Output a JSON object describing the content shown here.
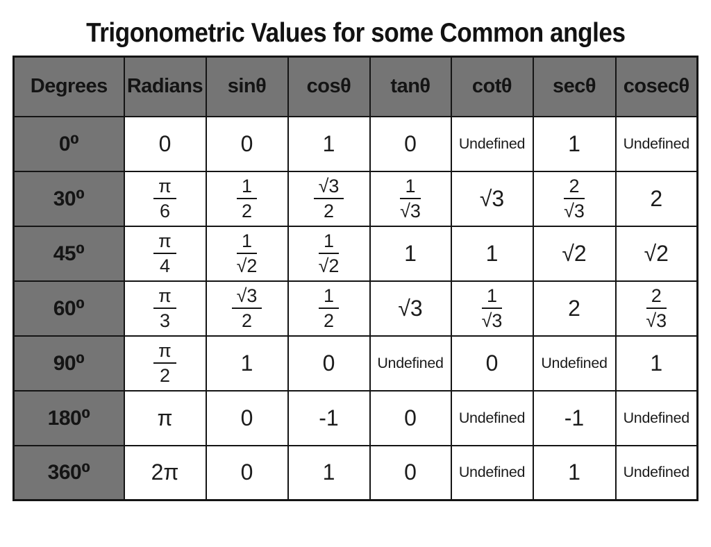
{
  "page": {
    "title": "Trigonometric Values for some Common angles"
  },
  "colors": {
    "header_bg": "#757575",
    "cell_bg": "#ffffff",
    "border": "#141414",
    "text": "#1b1b1b"
  },
  "table": {
    "columns": [
      "Degrees",
      "Radians",
      "sinθ",
      "cosθ",
      "tanθ",
      "cotθ",
      "secθ",
      "cosecθ"
    ],
    "rows": [
      {
        "degrees": "0⁰",
        "values": [
          "0",
          "0",
          "1",
          "0",
          "Undefined",
          "1",
          "Undefined"
        ]
      },
      {
        "degrees": "30⁰",
        "values": [
          "π/6",
          "1/2",
          "√3/2",
          "1/√3",
          "√3",
          "2/√3",
          "2"
        ]
      },
      {
        "degrees": "45⁰",
        "values": [
          "π/4",
          "1/√2",
          "1/√2",
          "1",
          "1",
          "√2",
          "√2"
        ]
      },
      {
        "degrees": "60⁰",
        "values": [
          "π/3",
          "√3/2",
          "1/2",
          "√3",
          "1/√3",
          "2",
          "2/√3"
        ]
      },
      {
        "degrees": "90⁰",
        "values": [
          "π/2",
          "1",
          "0",
          "Undefined",
          "0",
          "Undefined",
          "1"
        ]
      },
      {
        "degrees": "180⁰",
        "values": [
          "π",
          "0",
          "-1",
          "0",
          "Undefined",
          "-1",
          "Undefined"
        ]
      },
      {
        "degrees": "360⁰",
        "values": [
          "2π",
          "0",
          "1",
          "0",
          "Undefined",
          "1",
          "Undefined"
        ]
      }
    ]
  },
  "chart_data": {
    "type": "table",
    "title": "Trigonometric Values for some Common angles",
    "columns": [
      "Degrees",
      "Radians",
      "sinθ",
      "cosθ",
      "tanθ",
      "cotθ",
      "secθ",
      "cosecθ"
    ],
    "rows": [
      [
        "0⁰",
        "0",
        "0",
        "1",
        "0",
        "Undefined",
        "1",
        "Undefined"
      ],
      [
        "30⁰",
        "π/6",
        "1/2",
        "√3/2",
        "1/√3",
        "√3",
        "2/√3",
        "2"
      ],
      [
        "45⁰",
        "π/4",
        "1/√2",
        "1/√2",
        "1",
        "1",
        "√2",
        "√2"
      ],
      [
        "60⁰",
        "π/3",
        "√3/2",
        "1/2",
        "√3",
        "1/√3",
        "2",
        "2/√3"
      ],
      [
        "90⁰",
        "π/2",
        "1",
        "0",
        "Undefined",
        "0",
        "Undefined",
        "1"
      ],
      [
        "180⁰",
        "π",
        "0",
        "-1",
        "0",
        "Undefined",
        "-1",
        "Undefined"
      ],
      [
        "360⁰",
        "2π",
        "0",
        "1",
        "0",
        "Undefined",
        "1",
        "Undefined"
      ]
    ]
  }
}
